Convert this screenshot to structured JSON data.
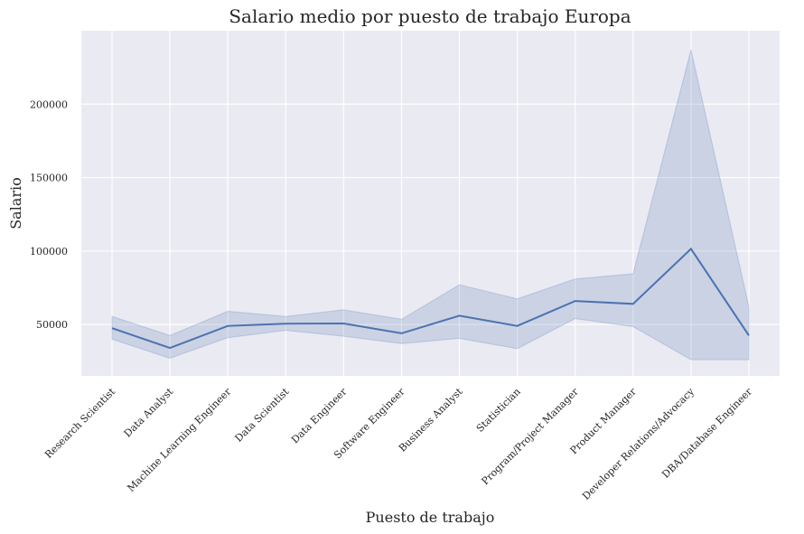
{
  "chart_data": {
    "type": "line",
    "title": "Salario medio por puesto de trabajo Europa",
    "xlabel": "Puesto de trabajo",
    "ylabel": "Salario",
    "categories": [
      "Research Scientist",
      "Data Analyst",
      "Machine Learning Engineer",
      "Data Scientist",
      "Data Engineer",
      "Software Engineer",
      "Business Analyst",
      "Statistician",
      "Program/Project Manager",
      "Product Manager",
      "Developer Relations/Advocacy",
      "DBA/Database Engineer"
    ],
    "series": [
      {
        "values": [
          47500,
          34000,
          49000,
          50500,
          50700,
          44000,
          56000,
          49000,
          66000,
          64000,
          101500,
          42500
        ],
        "ci_lower": [
          40000,
          27000,
          41000,
          46000,
          42000,
          37000,
          40500,
          33500,
          54000,
          48500,
          26000,
          26000
        ],
        "ci_upper": [
          55500,
          42500,
          59000,
          55500,
          60000,
          53500,
          77000,
          67500,
          81000,
          84500,
          237000,
          62000
        ]
      }
    ],
    "ylim": [
      15000,
      250000
    ],
    "yticks": [
      50000,
      100000,
      150000,
      200000
    ],
    "grid": true,
    "colors": {
      "line": "#4c72b0",
      "band": "#4c72b0",
      "background": "#eaeaf2",
      "grid": "#ffffff"
    }
  }
}
